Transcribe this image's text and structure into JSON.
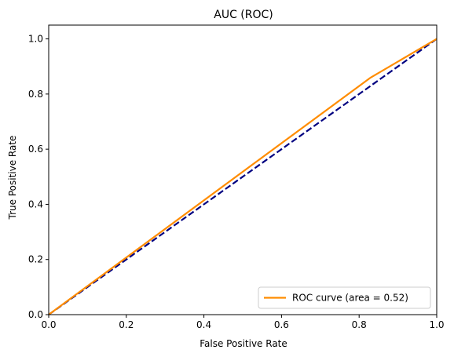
{
  "chart_data": {
    "type": "line",
    "title": "AUC (ROC)",
    "xlabel": "False Positive Rate",
    "ylabel": "True Positive Rate",
    "xlim": [
      0.0,
      1.0
    ],
    "ylim": [
      0.0,
      1.05
    ],
    "xticks": [
      0.0,
      0.2,
      0.4,
      0.6,
      0.8,
      1.0
    ],
    "xtick_labels": [
      "0.0",
      "0.2",
      "0.4",
      "0.6",
      "0.8",
      "1.0"
    ],
    "yticks": [
      0.0,
      0.2,
      0.4,
      0.6,
      0.8,
      1.0
    ],
    "ytick_labels": [
      "0.0",
      "0.2",
      "0.4",
      "0.6",
      "0.8",
      "1.0"
    ],
    "grid": false,
    "legend_position": "lower-right",
    "series": [
      {
        "name": "ROC curve (area = 0.52)",
        "color": "#ff8c00",
        "style": "solid",
        "x": [
          0.0,
          0.83,
          1.0
        ],
        "y": [
          0.0,
          0.86,
          1.0
        ]
      },
      {
        "color": "#000080",
        "style": "dashed",
        "x": [
          0.0,
          1.0
        ],
        "y": [
          0.0,
          1.0
        ]
      }
    ]
  }
}
